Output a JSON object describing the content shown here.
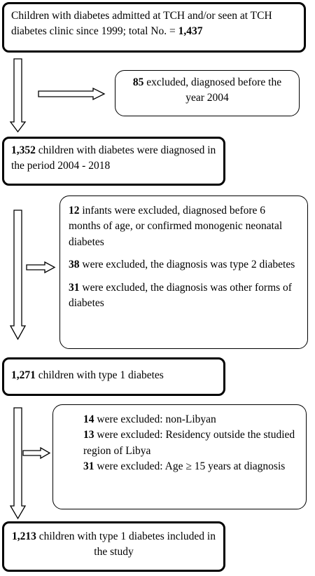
{
  "flow": {
    "start": {
      "text_a": "Children with diabetes admitted at TCH and/or seen at TCH diabetes clinic since 1999; total No. = ",
      "count": "1,437"
    },
    "exclusion1": {
      "count": "85",
      "text": " excluded, diagnosed before the year 2004"
    },
    "step2": {
      "count": "1,352",
      "text": " children with diabetes were diagnosed in the period 2004 - 2018"
    },
    "exclusion2": {
      "items": [
        {
          "count": "12",
          "text": " infants were excluded, diagnosed before 6 months of age, or confirmed monogenic neonatal diabetes"
        },
        {
          "count": "38",
          "text": " were excluded, the diagnosis was type 2 diabetes"
        },
        {
          "count": "31",
          "text": " were excluded, the diagnosis was other forms of diabetes"
        }
      ]
    },
    "step3": {
      "count": "1,271",
      "text": " children with type 1 diabetes"
    },
    "exclusion3": {
      "items": [
        {
          "count": "14",
          "text": " were excluded: non-Libyan"
        },
        {
          "count": "13",
          "text": " were excluded: Residency outside the studied region of Libya"
        },
        {
          "count": "31",
          "text": " were excluded: Age ≥ 15 years at diagnosis"
        }
      ]
    },
    "final": {
      "count": "1,213",
      "text": " children with type 1 diabetes included in the study"
    }
  }
}
